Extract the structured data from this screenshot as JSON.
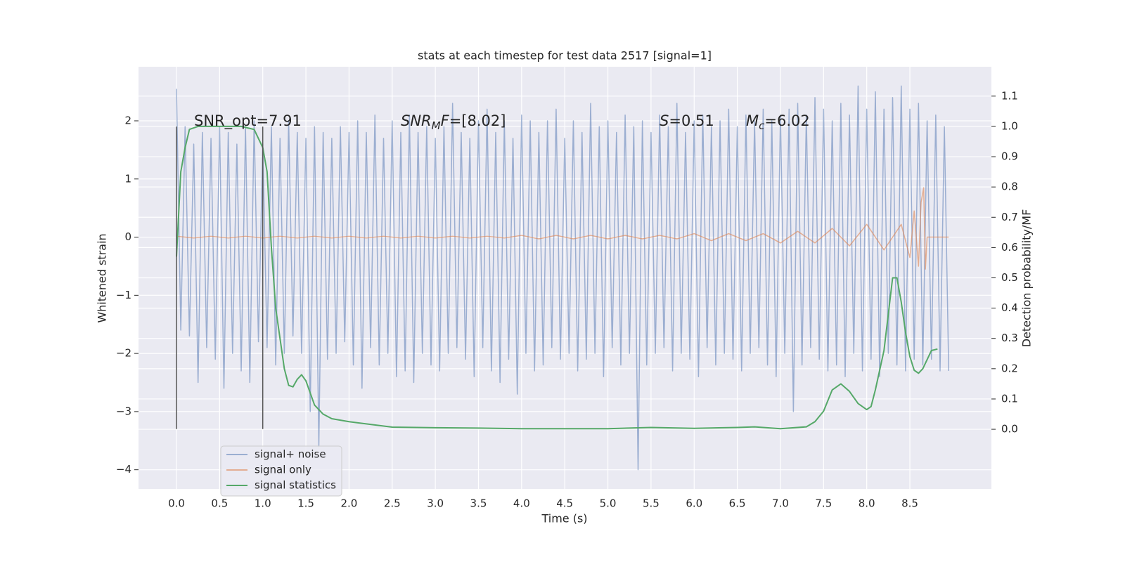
{
  "chart_data": {
    "type": "line",
    "title": "stats at each timestep for test data 2517 [signal=1]",
    "x_label": "Time (s)",
    "y_label": "Whitened strain",
    "y2_label": "Detection probability/MF",
    "xlim": [
      -0.44,
      9.445
    ],
    "ylim": [
      -4.33,
      2.93
    ],
    "y2lim": [
      -0.197,
      1.197
    ],
    "xticks": [
      {
        "value": 0,
        "label": "0.0"
      },
      0.5,
      {
        "value": 1,
        "label": "1.0"
      },
      1.5,
      {
        "value": 2,
        "label": "2.0"
      },
      2.5,
      {
        "value": 3,
        "label": "3.0"
      },
      3.5,
      {
        "value": 4,
        "label": "4.0"
      },
      4.5,
      {
        "value": 5,
        "label": "5.0"
      },
      5.5,
      {
        "value": 6,
        "label": "6.0"
      },
      6.5,
      {
        "value": 7,
        "label": "7.0"
      },
      7.5,
      {
        "value": 8,
        "label": "8.0"
      },
      8.5
    ],
    "yticks": [
      {
        "value": -4,
        "label": "−4"
      },
      {
        "value": -3,
        "label": "−3"
      },
      {
        "value": -2,
        "label": "−2"
      },
      {
        "value": -1,
        "label": "−1"
      },
      0,
      1,
      2
    ],
    "y2ticks": [
      {
        "value": 0,
        "label": "0.0"
      },
      0.1,
      0.2,
      0.3,
      0.4,
      0.5,
      0.6,
      0.7,
      0.8,
      0.9,
      {
        "value": 1,
        "label": "1.0"
      },
      1.1
    ],
    "grid": true,
    "legend": "lower left",
    "annotations": [
      {
        "parts": [
          "SNR_opt=7.91"
        ]
      },
      {
        "parts": [
          "SNR",
          "M",
          "F",
          "=[8.02]"
        ]
      },
      {
        "parts": [
          "S",
          "=0.51"
        ]
      },
      {
        "parts": [
          "M",
          "c",
          "=6.02"
        ]
      }
    ],
    "vlines": {
      "x": [
        0,
        1
      ],
      "ymin": -3.3,
      "ymax": 1.9,
      "color": "#555555"
    },
    "series": [
      {
        "name": "signal+ noise",
        "color": "#4c72b0",
        "alpha": 0.5,
        "x": [
          0,
          0.05,
          0.1,
          0.15,
          0.2,
          0.25,
          0.3,
          0.35,
          0.4,
          0.45,
          0.5,
          0.55,
          0.6,
          0.65,
          0.7,
          0.75,
          0.8,
          0.85,
          0.9,
          0.95,
          1,
          1.05,
          1.1,
          1.15,
          1.2,
          1.25,
          1.3,
          1.35,
          1.4,
          1.45,
          1.5,
          1.55,
          1.6,
          1.65,
          1.7,
          1.75,
          1.8,
          1.85,
          1.9,
          1.95,
          2,
          2.05,
          2.1,
          2.15,
          2.2,
          2.25,
          2.3,
          2.35,
          2.4,
          2.45,
          2.5,
          2.55,
          2.6,
          2.65,
          2.7,
          2.75,
          2.8,
          2.85,
          2.9,
          2.95,
          3,
          3.05,
          3.1,
          3.15,
          3.2,
          3.25,
          3.3,
          3.35,
          3.4,
          3.45,
          3.5,
          3.55,
          3.6,
          3.65,
          3.7,
          3.75,
          3.8,
          3.85,
          3.9,
          3.95,
          4,
          4.05,
          4.1,
          4.15,
          4.2,
          4.25,
          4.3,
          4.35,
          4.4,
          4.45,
          4.5,
          4.55,
          4.6,
          4.65,
          4.7,
          4.75,
          4.8,
          4.85,
          4.9,
          4.95,
          5,
          5.05,
          5.1,
          5.15,
          5.2,
          5.25,
          5.3,
          5.35,
          5.4,
          5.45,
          5.5,
          5.55,
          5.6,
          5.65,
          5.7,
          5.75,
          5.8,
          5.85,
          5.9,
          5.95,
          6,
          6.05,
          6.1,
          6.15,
          6.2,
          6.25,
          6.3,
          6.35,
          6.4,
          6.45,
          6.5,
          6.55,
          6.6,
          6.65,
          6.7,
          6.75,
          6.8,
          6.85,
          6.9,
          6.95,
          7,
          7.05,
          7.1,
          7.15,
          7.2,
          7.25,
          7.3,
          7.35,
          7.4,
          7.45,
          7.5,
          7.55,
          7.6,
          7.65,
          7.7,
          7.75,
          7.8,
          7.85,
          7.9,
          7.95,
          8,
          8.05,
          8.1,
          8.15,
          8.2,
          8.25,
          8.3,
          8.35,
          8.4,
          8.45,
          8.5,
          8.55,
          8.6,
          8.65,
          8.7,
          8.75,
          8.8,
          8.85,
          8.9,
          8.95
        ],
        "values": [
          2.55,
          -1.6,
          1.9,
          -1.7,
          1.6,
          -2.5,
          1.8,
          -1.9,
          1.7,
          -2.1,
          1.9,
          -2.6,
          1.8,
          -2.0,
          1.6,
          -2.3,
          1.9,
          -2.5,
          2.0,
          -1.8,
          1.6,
          -1.9,
          1.9,
          -2.2,
          1.7,
          -2.0,
          2.0,
          -1.7,
          1.8,
          -2.0,
          1.7,
          -3.0,
          1.9,
          -3.6,
          1.8,
          -2.1,
          1.7,
          -2.0,
          1.9,
          -1.8,
          1.8,
          -2.2,
          2.0,
          -2.6,
          1.8,
          -1.9,
          2.1,
          -2.2,
          1.7,
          -2.0,
          2.0,
          -2.4,
          1.8,
          -2.3,
          2.1,
          -2.5,
          1.8,
          -2.0,
          1.9,
          -2.2,
          1.7,
          -2.3,
          1.9,
          -2.0,
          2.3,
          -1.9,
          1.8,
          -2.1,
          1.7,
          -2.4,
          2.0,
          -1.9,
          2.2,
          -2.3,
          1.8,
          -2.5,
          2.0,
          -2.1,
          1.7,
          -2.7,
          2.1,
          -2.0,
          2.0,
          -2.3,
          1.8,
          -2.2,
          2.0,
          -1.9,
          2.2,
          -2.1,
          1.7,
          -2.0,
          2.0,
          -2.3,
          1.8,
          -2.1,
          2.3,
          -2.0,
          1.9,
          -2.4,
          2.0,
          -1.9,
          1.8,
          -2.2,
          2.1,
          -2.0,
          1.9,
          -4.0,
          2.0,
          -2.2,
          1.8,
          -2.0,
          2.1,
          -1.9,
          1.9,
          -2.3,
          2.3,
          -2.0,
          1.8,
          -2.1,
          2.0,
          -2.4,
          2.1,
          -1.9,
          1.9,
          -2.2,
          2.0,
          -2.0,
          2.2,
          -2.1,
          1.9,
          -2.3,
          2.1,
          -2.0,
          2.0,
          -1.9,
          2.2,
          -2.2,
          2.0,
          -2.4,
          2.1,
          -2.0,
          2.2,
          -3.0,
          2.3,
          -2.2,
          2.1,
          -1.9,
          2.4,
          -2.1,
          2.2,
          -2.3,
          2.0,
          -2.2,
          2.3,
          -2.4,
          2.1,
          -2.0,
          2.6,
          -2.3,
          2.2,
          -2.1,
          2.5,
          -2.4,
          2.2,
          -2.0,
          2.4,
          -2.2,
          2.6,
          -2.3,
          2.2,
          -2.1,
          2.3,
          -2.2,
          2.0,
          -2.1,
          2.1,
          -2.3,
          1.9,
          -2.3
        ]
      },
      {
        "name": "signal only",
        "color": "#dd8452",
        "alpha": 0.6,
        "x": [
          0,
          0.2,
          0.4,
          0.6,
          0.8,
          1,
          1.2,
          1.4,
          1.6,
          1.8,
          2,
          2.2,
          2.4,
          2.6,
          2.8,
          3,
          3.2,
          3.4,
          3.6,
          3.8,
          4,
          4.2,
          4.4,
          4.6,
          4.8,
          5,
          5.2,
          5.4,
          5.6,
          5.8,
          6,
          6.2,
          6.4,
          6.6,
          6.8,
          7,
          7.2,
          7.4,
          7.6,
          7.8,
          8,
          8.2,
          8.4,
          8.5,
          8.55,
          8.6,
          8.63,
          8.66,
          8.68,
          8.7,
          8.95
        ],
        "values": [
          0.015,
          -0.015,
          0.015,
          -0.015,
          0.015,
          -0.015,
          0.015,
          -0.015,
          0.015,
          -0.015,
          0.015,
          -0.015,
          0.015,
          -0.015,
          0.015,
          -0.015,
          0.015,
          -0.015,
          0.015,
          -0.015,
          0.03,
          -0.03,
          0.03,
          -0.03,
          0.03,
          -0.03,
          0.03,
          -0.03,
          0.03,
          -0.03,
          0.06,
          -0.06,
          0.06,
          -0.06,
          0.06,
          -0.1,
          0.1,
          -0.1,
          0.15,
          -0.15,
          0.22,
          -0.22,
          0.22,
          -0.35,
          0.45,
          -0.5,
          0.6,
          0.85,
          -0.55,
          0,
          0
        ]
      },
      {
        "name": "signal statistics",
        "color": "#55a868",
        "alpha": 1,
        "axis": "y2",
        "x": [
          0,
          0.05,
          0.1,
          0.15,
          0.25,
          0.5,
          0.75,
          0.9,
          1,
          1.05,
          1.1,
          1.15,
          1.2,
          1.25,
          1.3,
          1.35,
          1.4,
          1.45,
          1.5,
          1.55,
          1.6,
          1.7,
          1.8,
          2,
          2.5,
          3,
          3.5,
          4,
          4.5,
          5,
          5.5,
          6,
          6.5,
          6.7,
          7,
          7.3,
          7.4,
          7.5,
          7.6,
          7.7,
          7.8,
          7.9,
          8,
          8.05,
          8.1,
          8.2,
          8.3,
          8.35,
          8.4,
          8.45,
          8.5,
          8.55,
          8.6,
          8.65,
          8.75,
          8.82
        ],
        "values": [
          0.57,
          0.85,
          0.93,
          0.99,
          1.0,
          1.0,
          1.0,
          0.99,
          0.93,
          0.85,
          0.6,
          0.4,
          0.3,
          0.2,
          0.145,
          0.14,
          0.165,
          0.18,
          0.16,
          0.12,
          0.08,
          0.05,
          0.035,
          0.025,
          0.007,
          0.005,
          0.004,
          0.002,
          0.002,
          0.002,
          0.006,
          0.003,
          0.006,
          0.008,
          0.002,
          0.008,
          0.025,
          0.06,
          0.13,
          0.15,
          0.125,
          0.085,
          0.065,
          0.075,
          0.13,
          0.26,
          0.5,
          0.5,
          0.42,
          0.32,
          0.24,
          0.195,
          0.185,
          0.2,
          0.26,
          0.265
        ]
      }
    ]
  }
}
